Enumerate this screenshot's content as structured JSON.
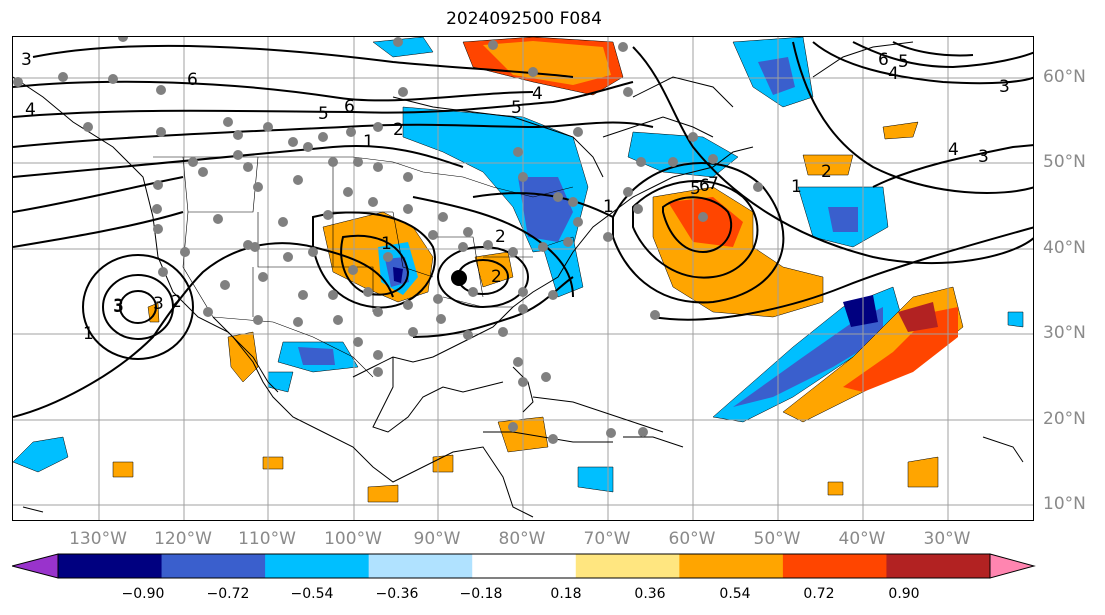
{
  "title": "2024092500 F084",
  "longitude_labels": [
    "130°W",
    "120°W",
    "110°W",
    "100°W",
    "90°W",
    "80°W",
    "70°W",
    "60°W",
    "50°W",
    "40°W",
    "30°W"
  ],
  "latitude_labels": [
    "60°N",
    "50°N",
    "40°N",
    "30°N",
    "20°N",
    "10°N"
  ],
  "colorbar": {
    "ticks": [
      "−0.90",
      "−0.72",
      "−0.54",
      "−0.36",
      "−0.18",
      "0.18",
      "0.36",
      "0.54",
      "0.72",
      "0.90"
    ],
    "colors": [
      "#9933cc",
      "#000080",
      "#3a5fcd",
      "#00bfff",
      "#b0e2ff",
      "#ffffff",
      "#ffe680",
      "#ffa500",
      "#ff4500",
      "#b22222",
      "#ff85b0"
    ]
  },
  "contour_labels": [
    "6",
    "5",
    "6",
    "5",
    "4",
    "3",
    "3",
    "4",
    "6",
    "5",
    "4",
    "3",
    "3",
    "4",
    "1",
    "2",
    "1",
    "2",
    "3",
    "1",
    "2",
    "1",
    "2",
    "5",
    "6",
    "7",
    "1",
    "2",
    "3"
  ],
  "colors": {
    "land_line": "#000000",
    "grid": "#a0a0a0",
    "station_dot": "#808080",
    "low_marker": "#000000"
  }
}
